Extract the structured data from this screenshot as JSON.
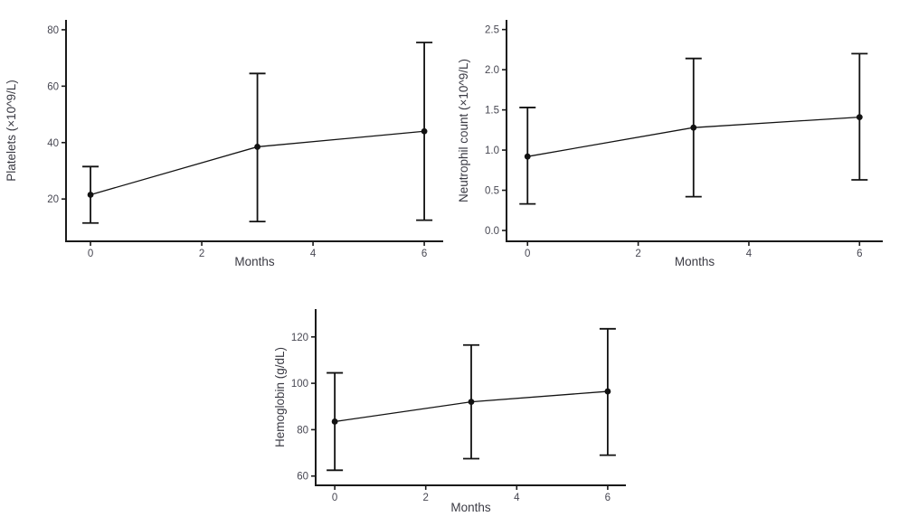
{
  "page": {
    "background": "#ffffff"
  },
  "colors": {
    "axis_line": "#1a1a1a",
    "series": "#121212",
    "tick_text": "#474752",
    "axis_title_text": "#3b3b44"
  },
  "chart_data": [
    {
      "id": "platelets",
      "type": "line",
      "title": "",
      "xlabel": "Months",
      "ylabel": "Platelets (×10^9/L)",
      "x": [
        0,
        3,
        6
      ],
      "series": [
        {
          "name": "mean",
          "values": [
            21.5,
            38.5,
            44
          ],
          "err_low": [
            11.5,
            12,
            12.5
          ],
          "err_high": [
            31.5,
            64.5,
            75.5
          ]
        }
      ],
      "xticks": [
        0,
        2,
        4,
        6
      ],
      "xtick_labels": [
        "0",
        "2",
        "4",
        "6"
      ],
      "yticks": [
        20,
        40,
        60,
        80
      ],
      "ytick_labels": [
        "20",
        "40",
        "60",
        "80"
      ],
      "xlim": [
        -0.44,
        6.34
      ],
      "ylim": [
        5,
        83.5
      ],
      "grid": false,
      "legend": "none",
      "error_bars": true
    },
    {
      "id": "neutrophils",
      "type": "line",
      "title": "",
      "xlabel": "Months",
      "ylabel": "Neutrophil count (×10^9/L)",
      "x": [
        0,
        3,
        6
      ],
      "series": [
        {
          "name": "mean",
          "values": [
            0.92,
            1.28,
            1.41
          ],
          "err_low": [
            0.33,
            0.42,
            0.63
          ],
          "err_high": [
            1.53,
            2.14,
            2.2
          ]
        }
      ],
      "xticks": [
        0,
        2,
        4,
        6
      ],
      "xtick_labels": [
        "0",
        "2",
        "4",
        "6"
      ],
      "yticks": [
        0.0,
        0.5,
        1.0,
        1.5,
        2.0,
        2.5
      ],
      "ytick_labels": [
        "0.0",
        "0.5",
        "1.0",
        "1.5",
        "2.0",
        "2.5"
      ],
      "xlim": [
        -0.38,
        6.42
      ],
      "ylim": [
        -0.135,
        2.62
      ],
      "grid": false,
      "legend": "none",
      "error_bars": true
    },
    {
      "id": "hemoglobin",
      "type": "line",
      "title": "",
      "xlabel": "Months",
      "ylabel": "Hemoglobin (g/dL)",
      "x": [
        0,
        3,
        6
      ],
      "series": [
        {
          "name": "mean",
          "values": [
            83.5,
            92,
            96.5
          ],
          "err_low": [
            62.5,
            67.5,
            69
          ],
          "err_high": [
            104.5,
            116.5,
            123.5
          ]
        }
      ],
      "xticks": [
        0,
        2,
        4,
        6
      ],
      "xtick_labels": [
        "0",
        "2",
        "4",
        "6"
      ],
      "yticks": [
        60,
        80,
        100,
        120
      ],
      "ytick_labels": [
        "60",
        "80",
        "100",
        "120"
      ],
      "xlim": [
        -0.42,
        6.4
      ],
      "ylim": [
        56,
        132
      ],
      "grid": false,
      "legend": "none",
      "error_bars": true
    }
  ]
}
